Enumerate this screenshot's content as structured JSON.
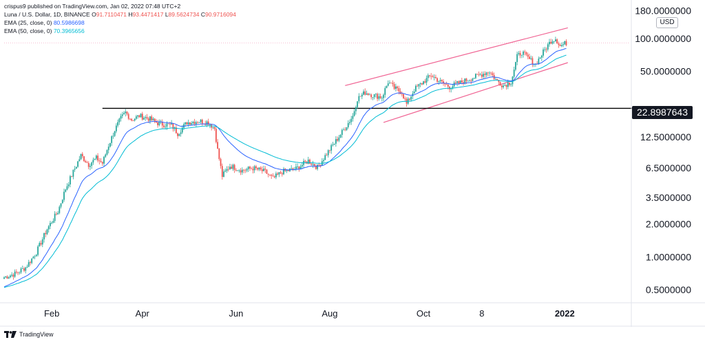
{
  "header": {
    "publisher": "crispus9 published on TradingView.com, Jan 02, 2022 07:48 UTC+2",
    "symbol": "Luna / U.S. Dollar, 1D, BINANCE",
    "ohlc": [
      {
        "k": "O",
        "v": "91.7110471"
      },
      {
        "k": "H",
        "v": "93.4471417"
      },
      {
        "k": "L",
        "v": "89.5624734"
      },
      {
        "k": "C",
        "v": "90.9716094"
      }
    ],
    "ema25_label": "EMA (25, close, 0)",
    "ema25_value": "80.5986698",
    "ema50_label": "EMA (50, close, 0)",
    "ema50_value": "70.3965656"
  },
  "currency_badge": "USD",
  "horizontal_level_label": "22.8987643",
  "footer": {
    "brand": "TradingView"
  },
  "colors": {
    "up": "#26a69a",
    "down": "#ef5350",
    "ema25": "#2962ff",
    "ema50": "#00bcd4",
    "channel": "#f06292",
    "level": "#000000"
  },
  "chart_data": {
    "type": "candlestick",
    "title": "Luna / U.S. Dollar, 1D, BINANCE",
    "y_scale": "log",
    "y_tick_labels": [
      "180.0000000",
      "100.0000000",
      "50.0000000",
      "22.8987643",
      "12.5000000",
      "6.5000000",
      "3.5000000",
      "2.0000000",
      "1.0000000",
      "0.5000000"
    ],
    "y_tick_values": [
      180,
      100,
      50,
      22.9,
      12.5,
      6.5,
      3.5,
      2.0,
      1.0,
      0.5
    ],
    "x_tick_labels": [
      "Feb",
      "Apr",
      "Jun",
      "Aug",
      "Oct",
      "8",
      "2022"
    ],
    "x_tick_dates": [
      "2021-02-01",
      "2021-04-01",
      "2021-06-01",
      "2021-08-01",
      "2021-10-01",
      "2021-11-08",
      "2022-01-01"
    ],
    "horizontal_level": 22.8987643,
    "x_range": [
      "2021-01-01",
      "2022-02-12"
    ],
    "ylim": [
      0.38,
      200
    ],
    "channel": {
      "upper": [
        {
          "date": "2021-08-11",
          "value": 37
        },
        {
          "date": "2022-01-03",
          "value": 125
        }
      ],
      "lower": [
        {
          "date": "2021-09-05",
          "value": 17
        },
        {
          "date": "2022-01-03",
          "value": 60
        }
      ]
    },
    "close_path": [
      {
        "date": "2021-01-01",
        "value": 0.65
      },
      {
        "date": "2021-01-08",
        "value": 0.7
      },
      {
        "date": "2021-01-15",
        "value": 0.8
      },
      {
        "date": "2021-01-22",
        "value": 1.1
      },
      {
        "date": "2021-01-29",
        "value": 1.8
      },
      {
        "date": "2021-02-05",
        "value": 2.6
      },
      {
        "date": "2021-02-10",
        "value": 4.2
      },
      {
        "date": "2021-02-15",
        "value": 6.0
      },
      {
        "date": "2021-02-20",
        "value": 8.5
      },
      {
        "date": "2021-02-25",
        "value": 7.0
      },
      {
        "date": "2021-03-02",
        "value": 8.0
      },
      {
        "date": "2021-03-06",
        "value": 7.2
      },
      {
        "date": "2021-03-10",
        "value": 10.5
      },
      {
        "date": "2021-03-14",
        "value": 14.5
      },
      {
        "date": "2021-03-18",
        "value": 18.5
      },
      {
        "date": "2021-03-21",
        "value": 21.0
      },
      {
        "date": "2021-03-25",
        "value": 18.0
      },
      {
        "date": "2021-03-30",
        "value": 19.5
      },
      {
        "date": "2021-04-05",
        "value": 18.5
      },
      {
        "date": "2021-04-12",
        "value": 16.5
      },
      {
        "date": "2021-04-20",
        "value": 16.0
      },
      {
        "date": "2021-04-24",
        "value": 13.5
      },
      {
        "date": "2021-04-30",
        "value": 17.0
      },
      {
        "date": "2021-05-08",
        "value": 17.5
      },
      {
        "date": "2021-05-14",
        "value": 17.0
      },
      {
        "date": "2021-05-18",
        "value": 15.0
      },
      {
        "date": "2021-05-20",
        "value": 9.5
      },
      {
        "date": "2021-05-23",
        "value": 5.5
      },
      {
        "date": "2021-05-28",
        "value": 6.8
      },
      {
        "date": "2021-06-05",
        "value": 6.2
      },
      {
        "date": "2021-06-12",
        "value": 6.5
      },
      {
        "date": "2021-06-20",
        "value": 6.0
      },
      {
        "date": "2021-06-25",
        "value": 5.2
      },
      {
        "date": "2021-07-01",
        "value": 6.0
      },
      {
        "date": "2021-07-10",
        "value": 6.4
      },
      {
        "date": "2021-07-18",
        "value": 7.6
      },
      {
        "date": "2021-07-24",
        "value": 6.6
      },
      {
        "date": "2021-07-30",
        "value": 8.8
      },
      {
        "date": "2021-08-05",
        "value": 11.5
      },
      {
        "date": "2021-08-10",
        "value": 14.5
      },
      {
        "date": "2021-08-16",
        "value": 19.5
      },
      {
        "date": "2021-08-19",
        "value": 28.0
      },
      {
        "date": "2021-08-24",
        "value": 32.0
      },
      {
        "date": "2021-08-30",
        "value": 30.0
      },
      {
        "date": "2021-09-04",
        "value": 29.0
      },
      {
        "date": "2021-09-08",
        "value": 40.0
      },
      {
        "date": "2021-09-12",
        "value": 35.0
      },
      {
        "date": "2021-09-17",
        "value": 32.0
      },
      {
        "date": "2021-09-20",
        "value": 25.0
      },
      {
        "date": "2021-09-25",
        "value": 34.0
      },
      {
        "date": "2021-10-01",
        "value": 40.0
      },
      {
        "date": "2021-10-06",
        "value": 46.0
      },
      {
        "date": "2021-10-12",
        "value": 40.0
      },
      {
        "date": "2021-10-18",
        "value": 36.0
      },
      {
        "date": "2021-10-24",
        "value": 39.0
      },
      {
        "date": "2021-11-01",
        "value": 43.0
      },
      {
        "date": "2021-11-08",
        "value": 47.0
      },
      {
        "date": "2021-11-13",
        "value": 50.0
      },
      {
        "date": "2021-11-17",
        "value": 42.0
      },
      {
        "date": "2021-11-22",
        "value": 37.0
      },
      {
        "date": "2021-11-27",
        "value": 40.0
      },
      {
        "date": "2021-12-01",
        "value": 68.0
      },
      {
        "date": "2021-12-04",
        "value": 75.0
      },
      {
        "date": "2021-12-08",
        "value": 66.0
      },
      {
        "date": "2021-12-13",
        "value": 58.0
      },
      {
        "date": "2021-12-18",
        "value": 75.0
      },
      {
        "date": "2021-12-23",
        "value": 95.0
      },
      {
        "date": "2021-12-26",
        "value": 100.0
      },
      {
        "date": "2021-12-29",
        "value": 85.0
      },
      {
        "date": "2022-01-02",
        "value": 90.97
      }
    ]
  }
}
